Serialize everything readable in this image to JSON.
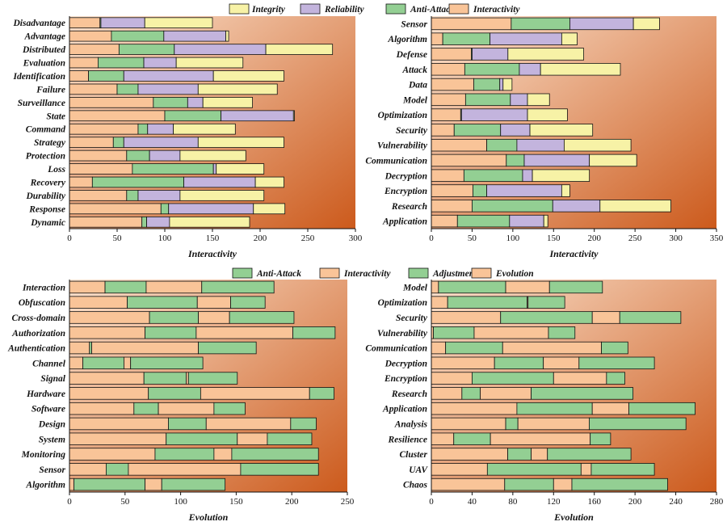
{
  "colors": {
    "Integrity": "#f7f2a6",
    "Reliability": "#c3b4dd",
    "Anti-Attack": "#93cf93",
    "Interactivity": "#f9c498",
    "Adjustment": "#93cf93",
    "Evolution": "#f9c498",
    "bg_light": "#fbe3cf",
    "bg_dark": "#cc5a1c"
  },
  "chart_data": [
    {
      "type": "bar",
      "stacked": true,
      "orientation": "horizontal",
      "title": "",
      "xlabel": "Interactivity",
      "ylabel": "",
      "xlim": [
        0,
        300
      ],
      "xticks": [
        0,
        50,
        100,
        150,
        200,
        250,
        300
      ],
      "legend_order": [
        "Integrity",
        "Reliability",
        "Anti-Attack",
        "Interactivity"
      ],
      "categories": [
        "Disadvantage",
        "Advantage",
        "Distributed",
        "Evaluation",
        "Identification",
        "Failure",
        "Surveillance",
        "State",
        "Command",
        "Strategy",
        "Protection",
        "Loss",
        "Recovery",
        "Durability",
        "Response",
        "Dynamic"
      ],
      "series": [
        {
          "name": "Interactivity",
          "values": [
            32,
            44,
            52,
            30,
            20,
            50,
            88,
            100,
            72,
            46,
            60,
            66,
            24,
            60,
            96,
            76
          ]
        },
        {
          "name": "Anti-Attack",
          "values": [
            1,
            55,
            58,
            48,
            37,
            22,
            36,
            59,
            10,
            11,
            24,
            85,
            96,
            12,
            8,
            5
          ]
        },
        {
          "name": "Reliability",
          "values": [
            46,
            65,
            96,
            34,
            94,
            63,
            16,
            76,
            27,
            78,
            32,
            3,
            75,
            44,
            89,
            24
          ]
        },
        {
          "name": "Integrity",
          "values": [
            71,
            3,
            70,
            70,
            74,
            83,
            52,
            1,
            65,
            90,
            69,
            50,
            30,
            88,
            33,
            84
          ]
        }
      ]
    },
    {
      "type": "bar",
      "stacked": true,
      "orientation": "horizontal",
      "title": "",
      "xlabel": "Interactivity",
      "ylabel": "",
      "xlim": [
        0,
        350
      ],
      "xticks": [
        0,
        50,
        100,
        150,
        200,
        250,
        300,
        350
      ],
      "categories": [
        "Sensor",
        "Algorithm",
        "Defense",
        "Attack",
        "Data",
        "Model",
        "Optimization",
        "Security",
        "Vulnerability",
        "Communication",
        "Decryption",
        "Encryption",
        "Research",
        "Application"
      ],
      "series": [
        {
          "name": "Interactivity",
          "values": [
            98,
            14,
            49,
            41,
            52,
            42,
            36,
            28,
            68,
            92,
            40,
            51,
            50,
            32
          ]
        },
        {
          "name": "Anti-Attack",
          "values": [
            72,
            58,
            1,
            67,
            32,
            55,
            1,
            57,
            37,
            22,
            72,
            17,
            99,
            64
          ]
        },
        {
          "name": "Reliability",
          "values": [
            78,
            88,
            44,
            26,
            4,
            21,
            81,
            36,
            58,
            80,
            12,
            92,
            58,
            42
          ]
        },
        {
          "name": "Integrity",
          "values": [
            32,
            19,
            93,
            98,
            11,
            27,
            49,
            77,
            82,
            58,
            70,
            10,
            87,
            5
          ]
        }
      ]
    },
    {
      "type": "bar",
      "stacked": true,
      "orientation": "horizontal",
      "title": "",
      "xlabel": "Evolution",
      "ylabel": "",
      "xlim": [
        0,
        250
      ],
      "xticks": [
        0,
        50,
        100,
        150,
        200,
        250
      ],
      "legend_order": [
        "Anti-Attack",
        "Interactivity",
        "Adjustment",
        "Evolution"
      ],
      "categories": [
        "Interaction",
        "Obfuscation",
        "Cross-domain",
        "Authorization",
        "Authentication",
        "Channel",
        "Signal",
        "Hardware",
        "Software",
        "Design",
        "System",
        "Monitoring",
        "Sensor",
        "Algorithm"
      ],
      "series": [
        {
          "name": "Evolution",
          "values": [
            32,
            52,
            72,
            68,
            18,
            12,
            67,
            71,
            58,
            89,
            87,
            77,
            33,
            4
          ]
        },
        {
          "name": "Adjustment",
          "values": [
            37,
            63,
            44,
            46,
            2,
            37,
            38,
            47,
            22,
            34,
            64,
            53,
            20,
            64
          ]
        },
        {
          "name": "Interactivity",
          "values": [
            50,
            30,
            28,
            87,
            96,
            6,
            2,
            98,
            50,
            76,
            27,
            16,
            101,
            15
          ]
        },
        {
          "name": "Anti-Attack",
          "values": [
            65,
            31,
            58,
            38,
            52,
            65,
            44,
            22,
            28,
            23,
            40,
            78,
            70,
            57
          ]
        }
      ]
    },
    {
      "type": "bar",
      "stacked": true,
      "orientation": "horizontal",
      "title": "",
      "xlabel": "Evolution",
      "ylabel": "",
      "xlim": [
        0,
        280
      ],
      "xticks": [
        0,
        40,
        80,
        120,
        160,
        200,
        240,
        280
      ],
      "categories": [
        "Model",
        "Optimization",
        "Security",
        "Vulnerability",
        "Communication",
        "Decryption",
        "Encryption",
        "Research",
        "Application",
        "Analysis",
        "Resilience",
        "Cluster",
        "UAV",
        "Chaos"
      ],
      "series": [
        {
          "name": "Evolution",
          "values": [
            7,
            16,
            68,
            2,
            14,
            62,
            40,
            30,
            84,
            73,
            22,
            75,
            55,
            72
          ]
        },
        {
          "name": "Adjustment",
          "values": [
            66,
            78,
            90,
            40,
            56,
            48,
            80,
            18,
            74,
            12,
            36,
            23,
            92,
            48
          ]
        },
        {
          "name": "Interactivity",
          "values": [
            43,
            1,
            27,
            73,
            97,
            35,
            52,
            50,
            36,
            70,
            98,
            16,
            10,
            18
          ]
        },
        {
          "name": "Anti-Attack",
          "values": [
            52,
            36,
            60,
            26,
            26,
            74,
            18,
            100,
            65,
            95,
            20,
            82,
            62,
            94
          ]
        }
      ]
    }
  ]
}
